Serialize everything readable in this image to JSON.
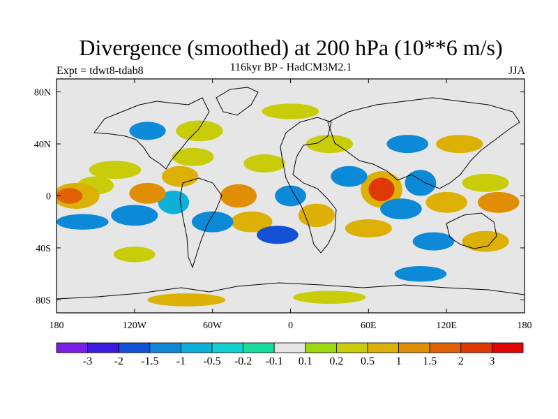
{
  "title": "Divergence (smoothed) at 200 hPa (10**6 m/s)",
  "subtitle": "116kyr BP - HadCM3M2.1",
  "experiment_label": "Expt = tdwt8-tdab8",
  "season_label": "JJA",
  "chart_data": {
    "type": "heatmap",
    "title": "Divergence (smoothed) at 200 hPa (10**6 m/s)",
    "subtitle": "116kyr BP - HadCM3M2.1",
    "x_ticks": [
      {
        "value": -180,
        "label": "180"
      },
      {
        "value": -120,
        "label": "120W"
      },
      {
        "value": -60,
        "label": "60W"
      },
      {
        "value": 0,
        "label": "0"
      },
      {
        "value": 60,
        "label": "60E"
      },
      {
        "value": 120,
        "label": "120E"
      },
      {
        "value": 180,
        "label": "180"
      }
    ],
    "y_ticks": [
      {
        "value": 80,
        "label": "80N"
      },
      {
        "value": 40,
        "label": "40N"
      },
      {
        "value": 0,
        "label": "0"
      },
      {
        "value": -40,
        "label": "40S"
      },
      {
        "value": -80,
        "label": "80S"
      }
    ],
    "xlim": [
      -180,
      180
    ],
    "ylim": [
      -90,
      90
    ],
    "colorbar": {
      "labels": [
        "-3",
        "-2",
        "-1.5",
        "-1",
        "-0.5",
        "-0.2",
        "-0.1",
        "0.1",
        "0.2",
        "0.5",
        "1",
        "1.5",
        "2",
        "3"
      ],
      "colors": [
        "#7b1fe6",
        "#3b1be0",
        "#1350d8",
        "#0c8ad8",
        "#0cb0d8",
        "#10cfd0",
        "#18dc9e",
        "#e6e6e6",
        "#9bd810",
        "#c9cc08",
        "#dcb004",
        "#e08e04",
        "#e06004",
        "#e03804",
        "#e00404"
      ]
    },
    "blobs": [
      {
        "lon": -170,
        "lat": 0,
        "rx": 10,
        "ry": 6,
        "level": 12
      },
      {
        "lon": -165,
        "lat": 0,
        "rx": 18,
        "ry": 10,
        "level": 10
      },
      {
        "lon": -150,
        "lat": 8,
        "rx": 14,
        "ry": 7,
        "level": 9
      },
      {
        "lon": -160,
        "lat": -20,
        "rx": 20,
        "ry": 6,
        "level": 3
      },
      {
        "lon": -120,
        "lat": -15,
        "rx": 18,
        "ry": 8,
        "level": 3
      },
      {
        "lon": -135,
        "lat": 20,
        "rx": 20,
        "ry": 7,
        "level": 9
      },
      {
        "lon": -110,
        "lat": 2,
        "rx": 14,
        "ry": 8,
        "level": 11
      },
      {
        "lon": -90,
        "lat": -5,
        "rx": 12,
        "ry": 9,
        "level": 4
      },
      {
        "lon": -85,
        "lat": 15,
        "rx": 14,
        "ry": 8,
        "level": 10
      },
      {
        "lon": -75,
        "lat": 30,
        "rx": 16,
        "ry": 7,
        "level": 9
      },
      {
        "lon": -70,
        "lat": 50,
        "rx": 18,
        "ry": 8,
        "level": 9
      },
      {
        "lon": -110,
        "lat": 50,
        "rx": 14,
        "ry": 7,
        "level": 3
      },
      {
        "lon": -60,
        "lat": -20,
        "rx": 16,
        "ry": 8,
        "level": 3
      },
      {
        "lon": -40,
        "lat": 0,
        "rx": 14,
        "ry": 9,
        "level": 11
      },
      {
        "lon": -30,
        "lat": -20,
        "rx": 16,
        "ry": 8,
        "level": 10
      },
      {
        "lon": -20,
        "lat": 25,
        "rx": 16,
        "ry": 7,
        "level": 9
      },
      {
        "lon": 0,
        "lat": 0,
        "rx": 12,
        "ry": 8,
        "level": 3
      },
      {
        "lon": -10,
        "lat": -30,
        "rx": 16,
        "ry": 7,
        "level": 2
      },
      {
        "lon": 20,
        "lat": -15,
        "rx": 14,
        "ry": 9,
        "level": 10
      },
      {
        "lon": 30,
        "lat": 40,
        "rx": 18,
        "ry": 7,
        "level": 9
      },
      {
        "lon": 45,
        "lat": 15,
        "rx": 14,
        "ry": 8,
        "level": 3
      },
      {
        "lon": 70,
        "lat": 5,
        "rx": 10,
        "ry": 9,
        "level": 13
      },
      {
        "lon": 70,
        "lat": 5,
        "rx": 16,
        "ry": 14,
        "level": 10
      },
      {
        "lon": 60,
        "lat": -25,
        "rx": 18,
        "ry": 7,
        "level": 10
      },
      {
        "lon": 85,
        "lat": -10,
        "rx": 16,
        "ry": 8,
        "level": 3
      },
      {
        "lon": 100,
        "lat": 10,
        "rx": 12,
        "ry": 10,
        "level": 3
      },
      {
        "lon": 120,
        "lat": -5,
        "rx": 16,
        "ry": 8,
        "level": 10
      },
      {
        "lon": 150,
        "lat": 10,
        "rx": 18,
        "ry": 7,
        "level": 9
      },
      {
        "lon": 160,
        "lat": -5,
        "rx": 16,
        "ry": 8,
        "level": 11
      },
      {
        "lon": 150,
        "lat": -35,
        "rx": 18,
        "ry": 8,
        "level": 10
      },
      {
        "lon": 110,
        "lat": -35,
        "rx": 16,
        "ry": 7,
        "level": 3
      },
      {
        "lon": 130,
        "lat": 40,
        "rx": 18,
        "ry": 7,
        "level": 10
      },
      {
        "lon": 90,
        "lat": 40,
        "rx": 16,
        "ry": 7,
        "level": 3
      },
      {
        "lon": 0,
        "lat": 65,
        "rx": 22,
        "ry": 6,
        "level": 9
      },
      {
        "lon": -80,
        "lat": -80,
        "rx": 30,
        "ry": 5,
        "level": 10
      },
      {
        "lon": 30,
        "lat": -78,
        "rx": 28,
        "ry": 5,
        "level": 9
      },
      {
        "lon": -120,
        "lat": -45,
        "rx": 16,
        "ry": 6,
        "level": 9
      },
      {
        "lon": 100,
        "lat": -60,
        "rx": 20,
        "ry": 6,
        "level": 3
      }
    ]
  }
}
